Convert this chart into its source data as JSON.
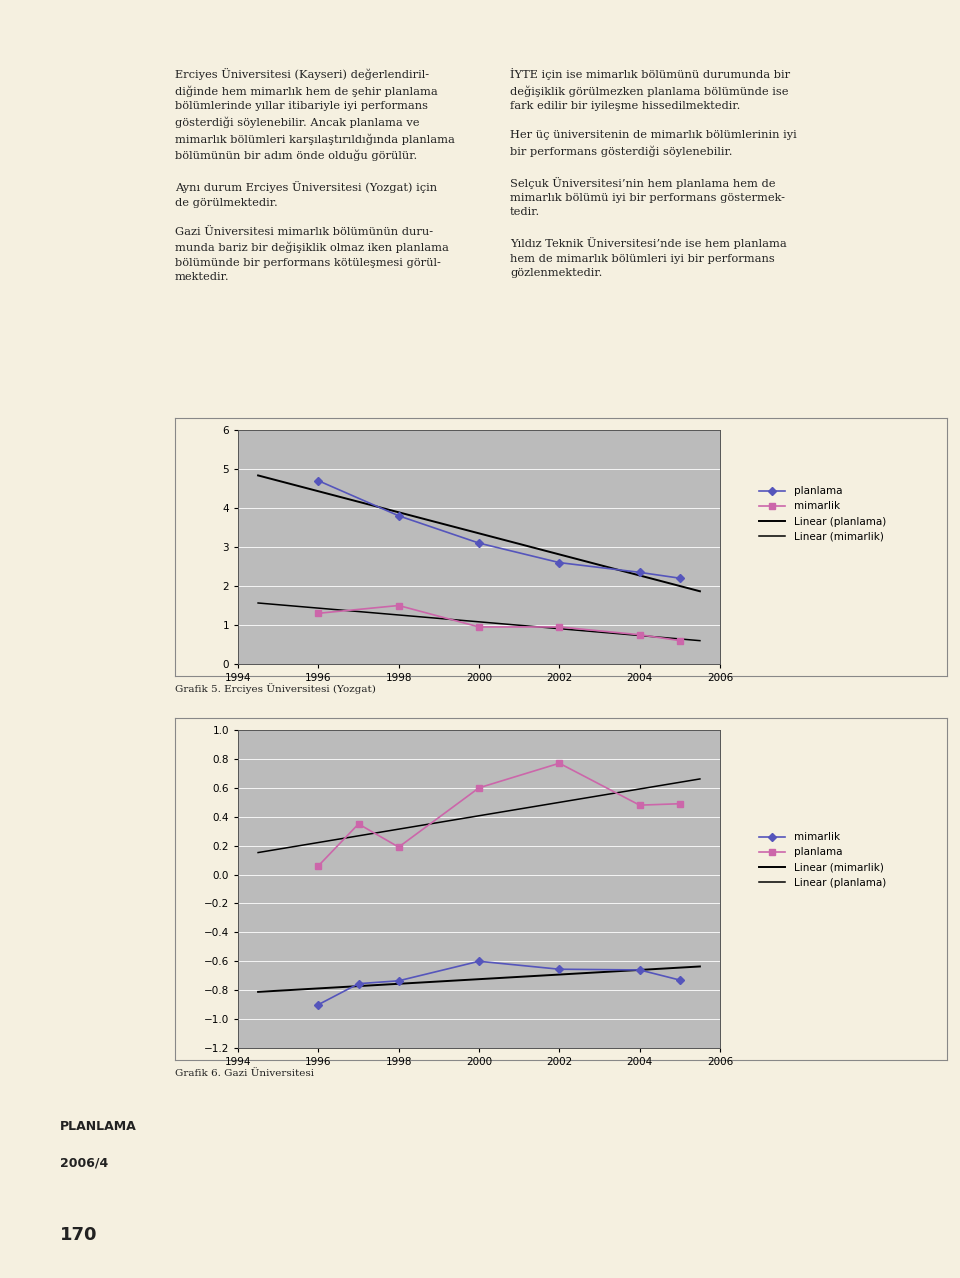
{
  "chart1": {
    "title": "Grafik 5. Erciyes Üniversitesi (Yozgat)",
    "years": [
      1996,
      1998,
      2000,
      2002,
      2004,
      2005
    ],
    "planlama": [
      4.7,
      3.8,
      3.1,
      2.6,
      2.35,
      2.2
    ],
    "mimarlik": [
      1.3,
      1.5,
      0.95,
      0.95,
      0.75,
      0.6
    ],
    "ylim": [
      0.0,
      6.0
    ],
    "yticks": [
      0.0,
      1.0,
      2.0,
      3.0,
      4.0,
      5.0,
      6.0
    ],
    "xticks": [
      1994,
      1996,
      1998,
      2000,
      2002,
      2004,
      2006
    ],
    "planlama_color": "#5555bb",
    "mimarlik_color": "#cc66aa",
    "linear_color": "#000000",
    "legend_labels": [
      "planlama",
      "mimarlik",
      "Linear (planlama)",
      "Linear (mimarlik)"
    ]
  },
  "chart2": {
    "title": "Grafik 6. Gazi Üniversitesi",
    "years": [
      1996,
      1997,
      1998,
      2000,
      2002,
      2004,
      2005
    ],
    "mimarlik": [
      -0.9,
      -0.755,
      -0.735,
      -0.6,
      -0.655,
      -0.66,
      -0.73
    ],
    "planlama": [
      0.06,
      0.35,
      0.19,
      0.6,
      0.77,
      0.48,
      0.49
    ],
    "ylim": [
      -1.2,
      1.0
    ],
    "yticks": [
      -1.2,
      -1.0,
      -0.8,
      -0.6,
      -0.4,
      -0.2,
      0.0,
      0.2,
      0.4,
      0.6,
      0.8,
      1.0
    ],
    "xticks": [
      1994,
      1996,
      1998,
      2000,
      2002,
      2004,
      2006
    ],
    "mimarlik_color": "#5555bb",
    "planlama_color": "#cc66aa",
    "linear_color": "#000000",
    "legend_labels": [
      "mimarlik",
      "planlama",
      "Linear (mimarlik)",
      "Linear (planlama)"
    ]
  },
  "page_background": "#f5f0e0",
  "chart_background": "#bbbbbb",
  "chart_border": "#555555",
  "outer_border": "#888888",
  "text_color": "#222222",
  "left_col_texts": [
    "Erciyes Üniversitesi (Kayseri) değerlendiril-\ndiğinde hem mimarlık hem de şehir planlama\nbölümlerinde yıllar itibariyle iyi performans\ngösterdiği söylenebilir. Ancak planlama ve\nmimarlık bölümleri karşılaştırıldığında planlama\nbölümünün bir adım önde olduğu görülür.",
    "Aynı durum Erciyes Üniversitesi (Yozgat) için\nde görülmektedir.",
    "Gazi Üniversitesi mimarlık bölümünün duru-\nmunda bariz bir değişiklik olmaz iken planlama\nbölümünde bir performans kötüleşmesi görül-\nmektedir."
  ],
  "right_col_texts": [
    "İYTE için ise mimarlık bölümünü durumunda bir\ndeğişiklik görülmezken planlama bölümünde ise\nfark edilir bir iyileşme hissedilmektedir.",
    "Her üç üniversitenin de mimarlık bölümlerinin iyi\nbir performans gösterdiği söylenebilir.",
    "Selçuk Üniversitesi’nin hem planlama hem de\nmimarlık bölümü iyi bir performans göstermek-\ntedir.",
    "Yıldız Teknik Üniversitesi’nde ise hem planlama\nhem de mimarlık bölümleri iyi bir performans\ngözlenmektedir."
  ],
  "footer_left": "PLANLAMA",
  "footer_left2": "2006/4",
  "footer_page": "170"
}
